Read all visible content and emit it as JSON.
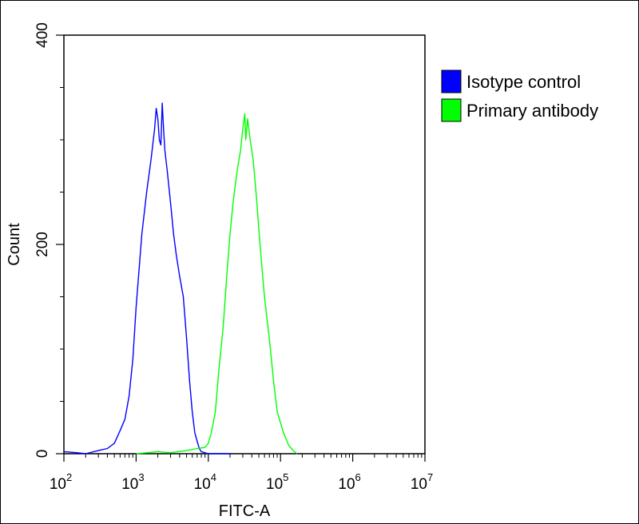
{
  "chart_data": {
    "type": "line",
    "title": "",
    "xlabel": "FITC-A",
    "ylabel": "Count",
    "x_scale": "log",
    "xlim": [
      100,
      10000000
    ],
    "ylim": [
      0,
      400
    ],
    "grid": false,
    "legend_position": "top-right",
    "x_ticks": [
      {
        "value": 100,
        "base": "10",
        "exp": "2"
      },
      {
        "value": 1000,
        "base": "10",
        "exp": "3"
      },
      {
        "value": 10000,
        "base": "10",
        "exp": "4"
      },
      {
        "value": 100000,
        "base": "10",
        "exp": "5"
      },
      {
        "value": 1000000,
        "base": "10",
        "exp": "6"
      },
      {
        "value": 10000000,
        "base": "10",
        "exp": "7"
      }
    ],
    "y_ticks": [
      {
        "value": 0,
        "label": "0"
      },
      {
        "value": 200,
        "label": "200"
      },
      {
        "value": 400,
        "label": "400"
      }
    ],
    "series": [
      {
        "name": "Isotype control",
        "color": "#0000ff",
        "points": [
          [
            100,
            2
          ],
          [
            150,
            1
          ],
          [
            200,
            0
          ],
          [
            300,
            3
          ],
          [
            400,
            5
          ],
          [
            500,
            10
          ],
          [
            600,
            22
          ],
          [
            700,
            33
          ],
          [
            800,
            55
          ],
          [
            900,
            90
          ],
          [
            1000,
            140
          ],
          [
            1200,
            210
          ],
          [
            1400,
            250
          ],
          [
            1600,
            280
          ],
          [
            1800,
            310
          ],
          [
            1900,
            330
          ],
          [
            2000,
            320
          ],
          [
            2100,
            300
          ],
          [
            2200,
            295
          ],
          [
            2300,
            335
          ],
          [
            2400,
            310
          ],
          [
            2500,
            290
          ],
          [
            2700,
            270
          ],
          [
            3000,
            240
          ],
          [
            3300,
            210
          ],
          [
            3600,
            190
          ],
          [
            4000,
            170
          ],
          [
            4500,
            150
          ],
          [
            5000,
            110
          ],
          [
            5500,
            70
          ],
          [
            6000,
            40
          ],
          [
            6500,
            20
          ],
          [
            7000,
            12
          ],
          [
            7500,
            5
          ],
          [
            8000,
            2
          ],
          [
            10000,
            0
          ],
          [
            20000,
            0
          ]
        ]
      },
      {
        "name": "Primary antibody",
        "color": "#00ff00",
        "points": [
          [
            1000,
            0
          ],
          [
            2000,
            2
          ],
          [
            3000,
            1
          ],
          [
            5000,
            3
          ],
          [
            7000,
            5
          ],
          [
            9000,
            6
          ],
          [
            10000,
            10
          ],
          [
            11000,
            20
          ],
          [
            12500,
            40
          ],
          [
            14000,
            80
          ],
          [
            16000,
            120
          ],
          [
            18000,
            170
          ],
          [
            20000,
            210
          ],
          [
            22000,
            240
          ],
          [
            25000,
            270
          ],
          [
            28000,
            290
          ],
          [
            30000,
            310
          ],
          [
            32000,
            325
          ],
          [
            33000,
            300
          ],
          [
            35000,
            320
          ],
          [
            38000,
            300
          ],
          [
            42000,
            280
          ],
          [
            47000,
            240
          ],
          [
            52000,
            200
          ],
          [
            60000,
            150
          ],
          [
            70000,
            110
          ],
          [
            80000,
            70
          ],
          [
            90000,
            40
          ],
          [
            110000,
            20
          ],
          [
            130000,
            8
          ],
          [
            150000,
            3
          ],
          [
            170000,
            0
          ]
        ]
      }
    ]
  }
}
